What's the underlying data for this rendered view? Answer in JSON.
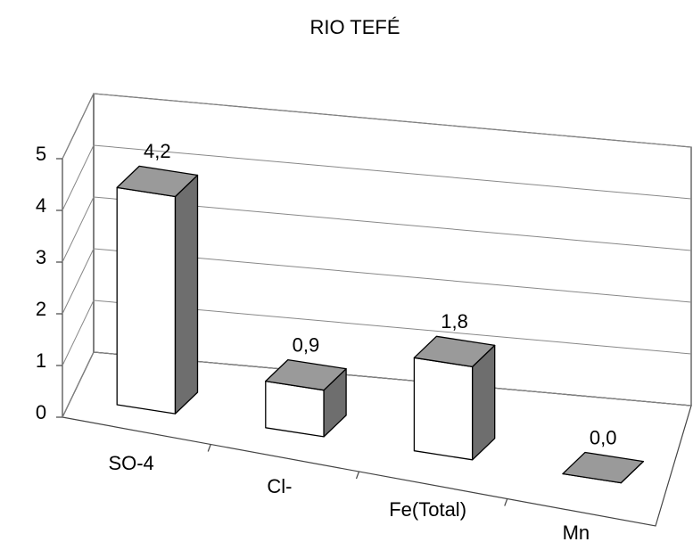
{
  "chart_data": {
    "type": "bar3d",
    "title": "RIO TEFÉ",
    "categories": [
      "SO-4",
      "Cl-",
      "Fe(Total)",
      "Mn"
    ],
    "values": [
      4.2,
      0.9,
      1.8,
      0.0
    ],
    "value_labels": [
      "4,2",
      "0,9",
      "1,8",
      "0,0"
    ],
    "ylim": [
      0,
      5
    ],
    "yticks": [
      0,
      1,
      2,
      3,
      4,
      5
    ],
    "grid": true,
    "colors": {
      "front": "#ffffff",
      "top": "#9a9a9a",
      "side": "#6e6e6e"
    }
  }
}
